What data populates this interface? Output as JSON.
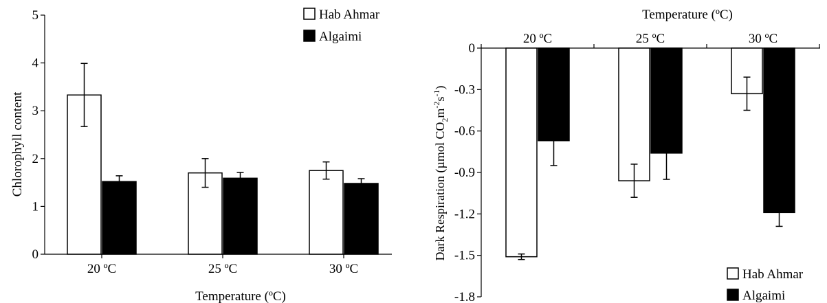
{
  "chart_data": [
    {
      "type": "bar",
      "title": "",
      "xlabel": "Temperature (ºC)",
      "ylabel": "Chlorophyll content",
      "categories": [
        "20 ºC",
        "25 ºC",
        "30 ºC"
      ],
      "ylim": [
        0,
        5
      ],
      "yticks": [
        "0",
        "1",
        "2",
        "3",
        "4",
        "5"
      ],
      "legend_position": "top-right",
      "series": [
        {
          "name": "Hab Ahmar",
          "color": "#ffffff",
          "values": [
            3.33,
            1.7,
            1.75
          ],
          "errors": [
            0.66,
            0.3,
            0.18
          ]
        },
        {
          "name": "Algaimi",
          "color": "#000000",
          "values": [
            1.52,
            1.59,
            1.48
          ],
          "errors": [
            0.12,
            0.12,
            0.1
          ]
        }
      ]
    },
    {
      "type": "bar",
      "title": "",
      "xlabel": "Temperature (ºC)",
      "ylabel": "Dark Respiration (µmol CO2m-2s-1)",
      "ylabel_parts": [
        "Dark Respiration (",
        "µ",
        "mol CO",
        "2",
        "m",
        "-2",
        "s",
        "-1",
        ")"
      ],
      "categories": [
        "20 ºC",
        "25 ºC",
        "30 ºC"
      ],
      "ylim": [
        -1.8,
        0
      ],
      "yticks": [
        "0",
        "-0.3",
        "-0.6",
        "-0.9",
        "-1.2",
        "-1.5",
        "-1.8"
      ],
      "x_axis_position": "top",
      "legend_position": "bottom-right",
      "series": [
        {
          "name": "Hab Ahmar",
          "color": "#ffffff",
          "values": [
            -1.51,
            -0.96,
            -0.33
          ],
          "errors": [
            0.02,
            0.12,
            0.12
          ]
        },
        {
          "name": "Algaimi",
          "color": "#000000",
          "values": [
            -0.67,
            -0.76,
            -1.19
          ],
          "errors": [
            0.18,
            0.19,
            0.1
          ]
        }
      ]
    }
  ]
}
